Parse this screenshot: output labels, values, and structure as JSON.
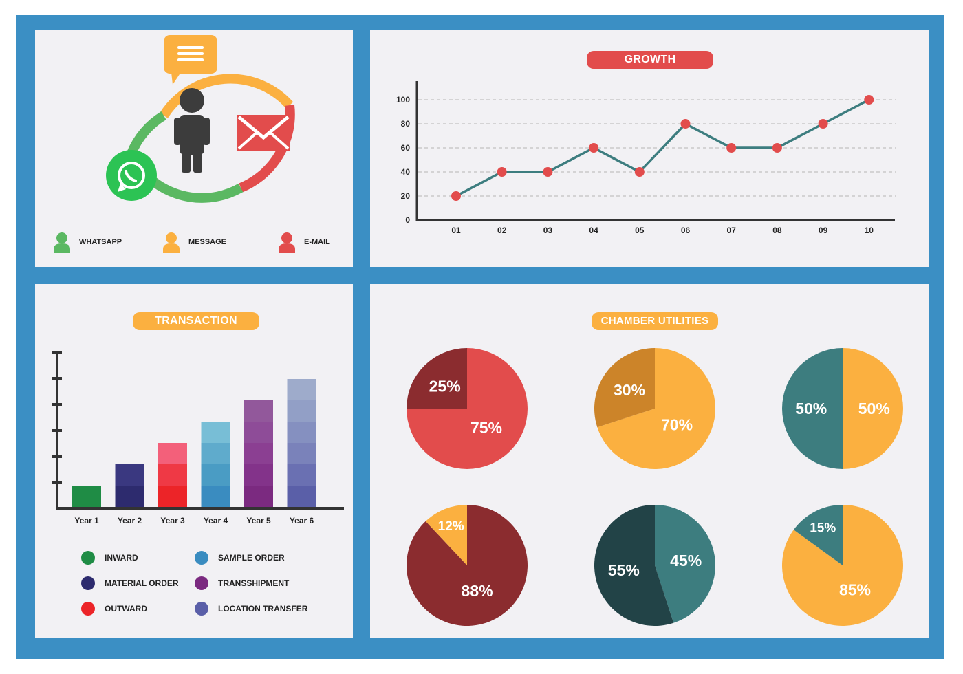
{
  "contact": {
    "legend": [
      {
        "label": "WHATSAPP",
        "color": "#5bb862"
      },
      {
        "label": "MESSAGE",
        "color": "#fbb040"
      },
      {
        "label": "E-MAIL",
        "color": "#e24c4c"
      }
    ],
    "icons": [
      "person-icon",
      "message-icon",
      "mail-icon",
      "whatsapp-icon"
    ]
  },
  "chart_data": [
    {
      "type": "line",
      "title": "GROWTH",
      "x": [
        "01",
        "02",
        "03",
        "04",
        "05",
        "06",
        "07",
        "08",
        "09",
        "10"
      ],
      "values": [
        20,
        40,
        40,
        60,
        40,
        80,
        60,
        60,
        80,
        100
      ],
      "ylim": [
        0,
        100
      ],
      "yticks": [
        0,
        20,
        40,
        60,
        80,
        100
      ],
      "grid": true,
      "line_color": "#3d7d7f",
      "point_color": "#e24c4c",
      "title_color": "#e24c4c"
    },
    {
      "type": "bar",
      "title": "TRANSACTION",
      "title_color": "#fbb040",
      "categories": [
        "Year 1",
        "Year 2",
        "Year 3",
        "Year 4",
        "Year 5",
        "Year 6"
      ],
      "values": [
        1,
        2,
        3,
        4,
        5,
        6
      ],
      "colors": [
        [
          "#1f8c45"
        ],
        [
          "#2d2b6e",
          "#3a3880"
        ],
        [
          "#ec2428",
          "#ef3945",
          "#f3607a"
        ],
        [
          "#3a8cc0",
          "#4a9cc4",
          "#5fabcc",
          "#78bed6"
        ],
        [
          "#7b2a80",
          "#83338a",
          "#8b3f92",
          "#8e4c98",
          "#92589b"
        ],
        [
          "#5a5fa8",
          "#6a70b2",
          "#7a82ba",
          "#8590c0",
          "#929fc6",
          "#9eabcb"
        ]
      ],
      "legend": [
        {
          "label": "INWARD",
          "color": "#1f8c45"
        },
        {
          "label": "SAMPLE ORDER",
          "color": "#3a8cc0"
        },
        {
          "label": "MATERIAL ORDER",
          "color": "#2d2b6e"
        },
        {
          "label": "TRANSSHIPMENT",
          "color": "#7b2a80"
        },
        {
          "label": "OUTWARD",
          "color": "#ec2428"
        },
        {
          "label": "LOCATION TRANSFER",
          "color": "#5a5fa8"
        }
      ]
    },
    {
      "type": "pie",
      "title": "CHAMBER UTILITIES",
      "title_color": "#fbb040",
      "pies": [
        {
          "slices": [
            {
              "label": "75%",
              "value": 75,
              "color": "#e24c4c"
            },
            {
              "label": "25%",
              "value": 25,
              "color": "#8b2c2f"
            }
          ]
        },
        {
          "slices": [
            {
              "label": "70%",
              "value": 70,
              "color": "#fbb040"
            },
            {
              "label": "30%",
              "value": 30,
              "color": "#cc8429"
            }
          ]
        },
        {
          "slices": [
            {
              "label": "50%",
              "value": 50,
              "color": "#fbb040"
            },
            {
              "label": "50%",
              "value": 50,
              "color": "#3d7d7f"
            }
          ]
        },
        {
          "slices": [
            {
              "label": "88%",
              "value": 88,
              "color": "#8b2c2f"
            },
            {
              "label": "12%",
              "value": 12,
              "color": "#fbb040"
            }
          ]
        },
        {
          "slices": [
            {
              "label": "45%",
              "value": 45,
              "color": "#3d7d7f"
            },
            {
              "label": "55%",
              "value": 55,
              "color": "#224347"
            }
          ]
        },
        {
          "slices": [
            {
              "label": "85%",
              "value": 85,
              "color": "#fbb040"
            },
            {
              "label": "15%",
              "value": 15,
              "color": "#3d7d7f"
            }
          ]
        }
      ]
    }
  ]
}
